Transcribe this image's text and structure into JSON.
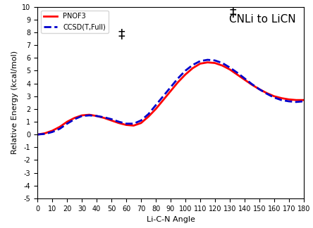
{
  "chart_data": {
    "type": "line",
    "x_label": "Li-C-N Angle",
    "y_label": "Relative Energy (kcal/mol)",
    "x": [
      0,
      5,
      10,
      15,
      20,
      25,
      30,
      35,
      40,
      45,
      50,
      55,
      60,
      65,
      70,
      75,
      80,
      85,
      90,
      95,
      100,
      105,
      110,
      115,
      120,
      125,
      130,
      135,
      140,
      145,
      150,
      155,
      160,
      165,
      170,
      175,
      180
    ],
    "series": [
      {
        "name": "PNOF3",
        "color": "#ff0000",
        "line_style": "solid",
        "values": [
          0,
          0.1,
          0.3,
          0.6,
          1.0,
          1.3,
          1.5,
          1.55,
          1.45,
          1.3,
          1.1,
          0.9,
          0.75,
          0.7,
          0.9,
          1.4,
          2.0,
          2.7,
          3.4,
          4.1,
          4.7,
          5.2,
          5.55,
          5.65,
          5.6,
          5.4,
          5.1,
          4.7,
          4.3,
          3.9,
          3.55,
          3.25,
          3.0,
          2.85,
          2.75,
          2.7,
          2.7
        ]
      },
      {
        "name": "CCSD(T,Full)",
        "color": "#0000cc",
        "line_style": "dashed",
        "values": [
          0,
          0.05,
          0.2,
          0.45,
          0.85,
          1.2,
          1.45,
          1.5,
          1.45,
          1.35,
          1.2,
          1.0,
          0.85,
          0.85,
          1.1,
          1.6,
          2.3,
          3.0,
          3.7,
          4.4,
          5.0,
          5.45,
          5.75,
          5.85,
          5.8,
          5.6,
          5.25,
          4.85,
          4.4,
          3.95,
          3.55,
          3.2,
          2.9,
          2.7,
          2.6,
          2.55,
          2.6
        ]
      }
    ],
    "annotations": [
      {
        "text": "CNLi to LiCN",
        "x": 152,
        "y": 9.0
      },
      {
        "text": "‡",
        "x": 57,
        "y": 7.8
      },
      {
        "text": "‡",
        "x": 132,
        "y": 9.5
      }
    ],
    "xlim": [
      0,
      180
    ],
    "ylim": [
      -5,
      10
    ],
    "xticks": [
      0,
      10,
      20,
      30,
      40,
      50,
      60,
      70,
      80,
      90,
      100,
      110,
      120,
      130,
      140,
      150,
      160,
      170,
      180
    ],
    "yticks": [
      -5,
      -4,
      -3,
      -2,
      -1,
      0,
      1,
      2,
      3,
      4,
      5,
      6,
      7,
      8,
      9,
      10
    ],
    "legend": "upper left",
    "grid": false
  }
}
